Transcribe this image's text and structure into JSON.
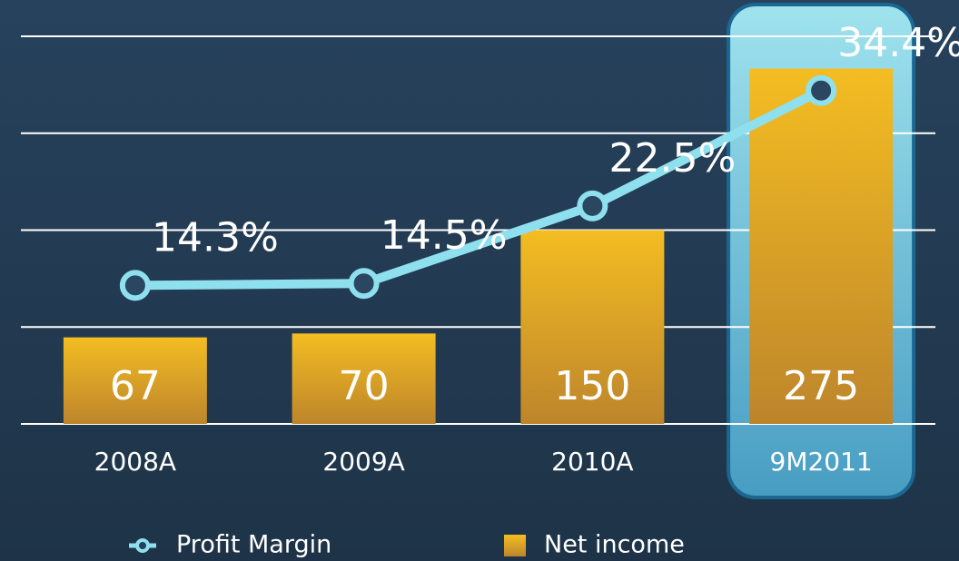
{
  "chart_data": {
    "type": "bar",
    "categories": [
      "2008A",
      "2009A",
      "2010A",
      "9M2011"
    ],
    "series": [
      {
        "name": "Profit Margin",
        "type": "line",
        "axis": "y2",
        "color": "#8fe0ee",
        "values": [
          14.3,
          14.5,
          22.5,
          34.4
        ],
        "value_labels": [
          "14.3%",
          "14.5%",
          "22.5%",
          "34.4%"
        ]
      },
      {
        "name": "Net income",
        "type": "bar",
        "color": "#e8a926",
        "values": [
          67,
          70,
          150,
          275
        ]
      }
    ],
    "ylim": [
      0,
      300
    ],
    "yticks": [
      0,
      75,
      150,
      225,
      300
    ],
    "y2lim": [
      0,
      40
    ],
    "grid": true,
    "legend": "bottom",
    "highlight": 3
  }
}
